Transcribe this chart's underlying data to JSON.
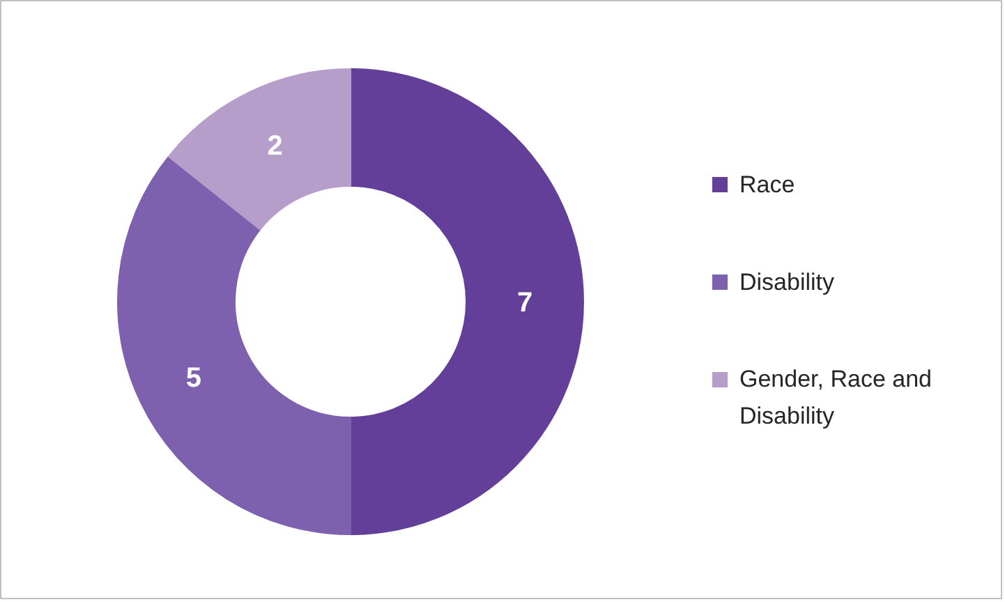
{
  "chart_data": {
    "type": "donut",
    "categories": [
      "Race",
      "Disability",
      "Gender, Race and Disability"
    ],
    "values": [
      7,
      5,
      2
    ],
    "colors": [
      "#643f9a",
      "#7d60ae",
      "#b69ecb"
    ],
    "data_labels": true,
    "legend": "right"
  }
}
